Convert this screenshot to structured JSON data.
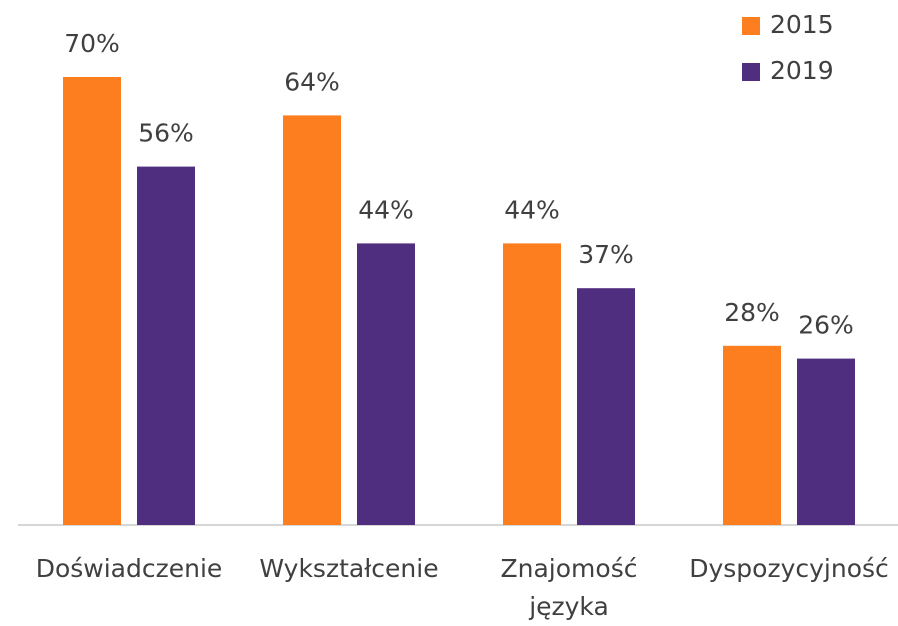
{
  "chart_data": {
    "type": "bar",
    "categories": [
      "Doświadczenie",
      "Wykształcenie",
      "Znajomość języka",
      "Dyspozycyjność"
    ],
    "series": [
      {
        "name": "2015",
        "color": "#fd7e1e",
        "values": [
          70,
          64,
          44,
          28
        ],
        "value_labels": [
          "70%",
          "64%",
          "44%",
          "28%"
        ]
      },
      {
        "name": "2019",
        "color": "#4f2d7f",
        "values": [
          56,
          44,
          37,
          26
        ],
        "value_labels": [
          "56%",
          "44%",
          "37%",
          "26%"
        ]
      }
    ],
    "ylim": [
      0,
      70
    ],
    "legend": "top-right"
  }
}
